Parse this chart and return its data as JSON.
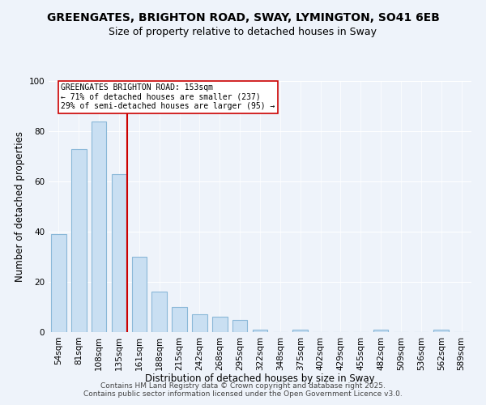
{
  "title": "GREENGATES, BRIGHTON ROAD, SWAY, LYMINGTON, SO41 6EB",
  "subtitle": "Size of property relative to detached houses in Sway",
  "xlabel": "Distribution of detached houses by size in Sway",
  "ylabel": "Number of detached properties",
  "bar_labels": [
    "54sqm",
    "81sqm",
    "108sqm",
    "135sqm",
    "161sqm",
    "188sqm",
    "215sqm",
    "242sqm",
    "268sqm",
    "295sqm",
    "322sqm",
    "348sqm",
    "375sqm",
    "402sqm",
    "429sqm",
    "455sqm",
    "482sqm",
    "509sqm",
    "536sqm",
    "562sqm",
    "589sqm"
  ],
  "bar_values": [
    39,
    73,
    84,
    63,
    30,
    16,
    10,
    7,
    6,
    5,
    1,
    0,
    1,
    0,
    0,
    0,
    1,
    0,
    0,
    1,
    0
  ],
  "bar_color": "#c9dff2",
  "bar_edge_color": "#8ab8d8",
  "reference_line_color": "#cc0000",
  "annotation_text": "GREENGATES BRIGHTON ROAD: 153sqm\n← 71% of detached houses are smaller (237)\n29% of semi-detached houses are larger (95) →",
  "annotation_box_color": "#ffffff",
  "annotation_box_edge_color": "#cc0000",
  "ylim": [
    0,
    100
  ],
  "yticks": [
    0,
    20,
    40,
    60,
    80,
    100
  ],
  "footer_line1": "Contains HM Land Registry data © Crown copyright and database right 2025.",
  "footer_line2": "Contains public sector information licensed under the Open Government Licence v3.0.",
  "background_color": "#eef3fa",
  "title_fontsize": 10,
  "subtitle_fontsize": 9,
  "axis_label_fontsize": 8.5,
  "tick_fontsize": 7.5,
  "annotation_fontsize": 7,
  "footer_fontsize": 6.5
}
